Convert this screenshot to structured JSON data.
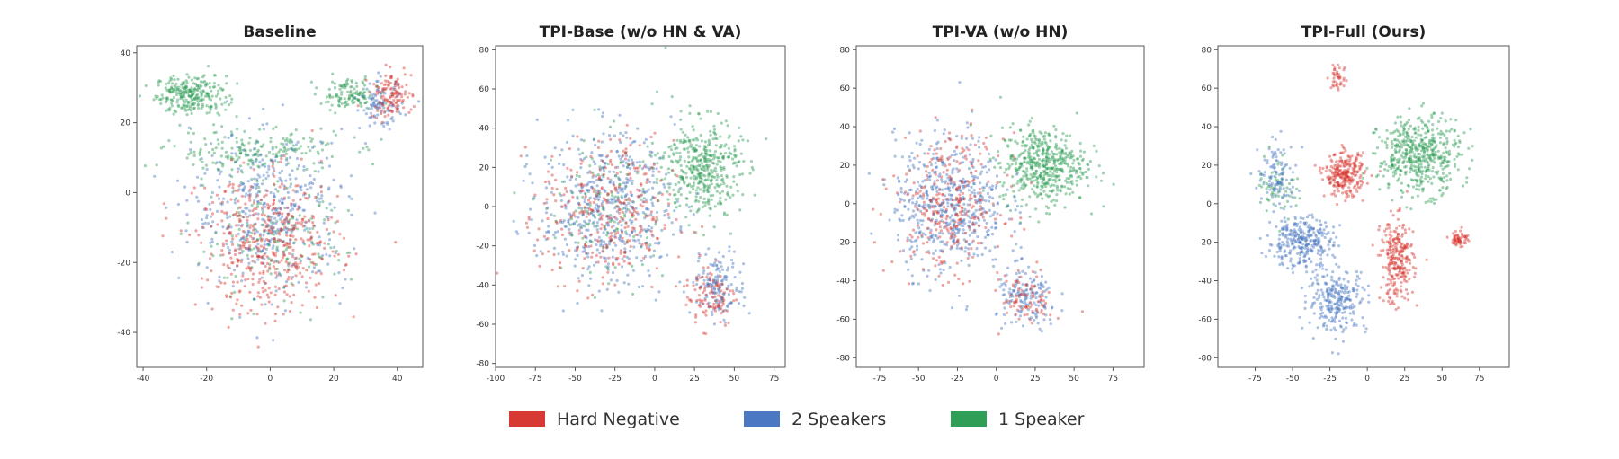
{
  "colors": {
    "hard_negative": "#d73a32",
    "two_speakers": "#4a78c2",
    "one_speaker": "#2f9e57"
  },
  "legend": [
    {
      "label": "Hard Negative",
      "color": "#d73a32"
    },
    {
      "label": "2 Speakers",
      "color": "#4a78c2"
    },
    {
      "label": "1 Speaker",
      "color": "#2f9e57"
    }
  ],
  "chart_data": [
    {
      "type": "scatter",
      "title": "Baseline",
      "xlim": [
        -42,
        48
      ],
      "ylim": [
        -50,
        42
      ],
      "xticks": [
        -40,
        -20,
        0,
        20,
        40
      ],
      "yticks": [
        -40,
        -20,
        0,
        20,
        40
      ],
      "clusters": [
        {
          "series": "1 Speaker",
          "center": [
            -25,
            28
          ],
          "spread": [
            10,
            5
          ],
          "count": 260
        },
        {
          "series": "1 Speaker",
          "center": [
            25,
            28
          ],
          "spread": [
            8,
            4
          ],
          "count": 120
        },
        {
          "series": "1 Speaker",
          "center": [
            -5,
            12
          ],
          "spread": [
            25,
            6
          ],
          "count": 200
        },
        {
          "series": "1 Speaker",
          "center": [
            0,
            -15
          ],
          "spread": [
            22,
            15
          ],
          "count": 150
        },
        {
          "series": "2 Speakers",
          "center": [
            0,
            -5
          ],
          "spread": [
            22,
            20
          ],
          "count": 450
        },
        {
          "series": "2 Speakers",
          "center": [
            35,
            25
          ],
          "spread": [
            6,
            6
          ],
          "count": 100
        },
        {
          "series": "Hard Negative",
          "center": [
            0,
            -15
          ],
          "spread": [
            20,
            18
          ],
          "count": 450
        },
        {
          "series": "Hard Negative",
          "center": [
            38,
            28
          ],
          "spread": [
            6,
            6
          ],
          "count": 120
        }
      ]
    },
    {
      "type": "scatter",
      "title": "TPI-Base (w/o HN & VA)",
      "xlim": [
        -100,
        82
      ],
      "ylim": [
        -82,
        82
      ],
      "xticks": [
        -100,
        -75,
        -50,
        -25,
        0,
        25,
        50,
        75
      ],
      "yticks": [
        -80,
        -60,
        -40,
        -20,
        0,
        20,
        40,
        60,
        80
      ],
      "clusters": [
        {
          "series": "1 Speaker",
          "center": [
            30,
            20
          ],
          "spread": [
            22,
            22
          ],
          "count": 420
        },
        {
          "series": "1 Speaker",
          "center": [
            -30,
            0
          ],
          "spread": [
            35,
            35
          ],
          "count": 150
        },
        {
          "series": "2 Speakers",
          "center": [
            -30,
            0
          ],
          "spread": [
            38,
            35
          ],
          "count": 500
        },
        {
          "series": "2 Speakers",
          "center": [
            40,
            -40
          ],
          "spread": [
            15,
            15
          ],
          "count": 150
        },
        {
          "series": "Hard Negative",
          "center": [
            -30,
            -5
          ],
          "spread": [
            38,
            35
          ],
          "count": 320
        },
        {
          "series": "Hard Negative",
          "center": [
            35,
            -45
          ],
          "spread": [
            15,
            15
          ],
          "count": 100
        }
      ]
    },
    {
      "type": "scatter",
      "title": "TPI-VA (w/o HN)",
      "xlim": [
        -90,
        95
      ],
      "ylim": [
        -85,
        82
      ],
      "xticks": [
        -75,
        -50,
        -25,
        0,
        25,
        50,
        75
      ],
      "yticks": [
        -80,
        -60,
        -40,
        -20,
        0,
        20,
        40,
        60,
        80
      ],
      "clusters": [
        {
          "series": "1 Speaker",
          "center": [
            30,
            20
          ],
          "spread": [
            25,
            18
          ],
          "count": 500
        },
        {
          "series": "2 Speakers",
          "center": [
            -30,
            0
          ],
          "spread": [
            32,
            32
          ],
          "count": 550
        },
        {
          "series": "2 Speakers",
          "center": [
            20,
            -50
          ],
          "spread": [
            18,
            15
          ],
          "count": 150
        },
        {
          "series": "Hard Negative",
          "center": [
            -30,
            0
          ],
          "spread": [
            32,
            32
          ],
          "count": 300
        },
        {
          "series": "Hard Negative",
          "center": [
            20,
            -50
          ],
          "spread": [
            15,
            12
          ],
          "count": 80
        }
      ]
    },
    {
      "type": "scatter",
      "title": "TPI-Full (Ours)",
      "xlim": [
        -100,
        95
      ],
      "ylim": [
        -85,
        82
      ],
      "xticks": [
        -75,
        -50,
        -25,
        0,
        25,
        50,
        75
      ],
      "yticks": [
        -80,
        -60,
        -40,
        -20,
        0,
        20,
        40,
        60,
        80
      ],
      "clusters": [
        {
          "series": "1 Speaker",
          "center": [
            35,
            25
          ],
          "spread": [
            25,
            18
          ],
          "count": 500
        },
        {
          "series": "1 Speaker",
          "center": [
            -60,
            10
          ],
          "spread": [
            12,
            15
          ],
          "count": 60
        },
        {
          "series": "2 Speakers",
          "center": [
            -45,
            -20
          ],
          "spread": [
            20,
            12
          ],
          "count": 300
        },
        {
          "series": "2 Speakers",
          "center": [
            -20,
            -50
          ],
          "spread": [
            18,
            15
          ],
          "count": 250
        },
        {
          "series": "2 Speakers",
          "center": [
            -60,
            15
          ],
          "spread": [
            12,
            15
          ],
          "count": 100
        },
        {
          "series": "Hard Negative",
          "center": [
            -15,
            15
          ],
          "spread": [
            12,
            10
          ],
          "count": 260
        },
        {
          "series": "Hard Negative",
          "center": [
            20,
            -30
          ],
          "spread": [
            10,
            20
          ],
          "count": 260
        },
        {
          "series": "Hard Negative",
          "center": [
            62,
            -18
          ],
          "spread": [
            5,
            4
          ],
          "count": 60
        },
        {
          "series": "Hard Negative",
          "center": [
            -20,
            65
          ],
          "spread": [
            6,
            6
          ],
          "count": 40
        }
      ]
    }
  ]
}
